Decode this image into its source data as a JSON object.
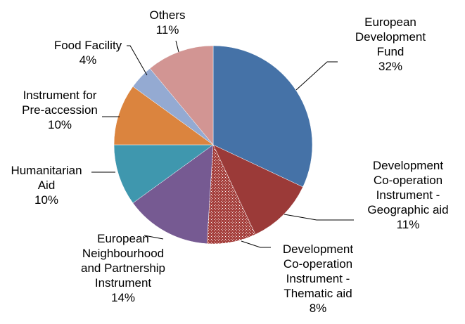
{
  "chart_data": {
    "type": "pie",
    "start_angle": "top, clockwise",
    "slices": [
      {
        "label": [
          "European",
          "Development",
          "Fund"
        ],
        "value": 32,
        "pct_label": "32%",
        "color": "#4572A7"
      },
      {
        "label": [
          "Development",
          "Co-operation",
          "Instrument -",
          "Geographic aid"
        ],
        "value": 11,
        "pct_label": "11%",
        "color": "#9B3A38"
      },
      {
        "label": [
          "Development",
          "Co-operation",
          "Instrument -",
          "Thematic aid"
        ],
        "value": 8,
        "pct_label": "8%",
        "color": "#A5403D",
        "pattern": "hatched"
      },
      {
        "label": [
          "European",
          "Neighbourhood",
          "and Partnership",
          "Instrument"
        ],
        "value": 14,
        "pct_label": "14%",
        "color": "#765A92"
      },
      {
        "label": [
          "Humanitarian",
          "Aid"
        ],
        "value": 10,
        "pct_label": "10%",
        "color": "#3F97AE"
      },
      {
        "label": [
          "Instrument for",
          "Pre-accession"
        ],
        "value": 10,
        "pct_label": "10%",
        "color": "#DB843E"
      },
      {
        "label": [
          "Food Facility"
        ],
        "value": 4,
        "pct_label": "4%",
        "color": "#94AAD2"
      },
      {
        "label": [
          "Others"
        ],
        "value": 11,
        "pct_label": "11%",
        "color": "#D29593"
      }
    ]
  }
}
